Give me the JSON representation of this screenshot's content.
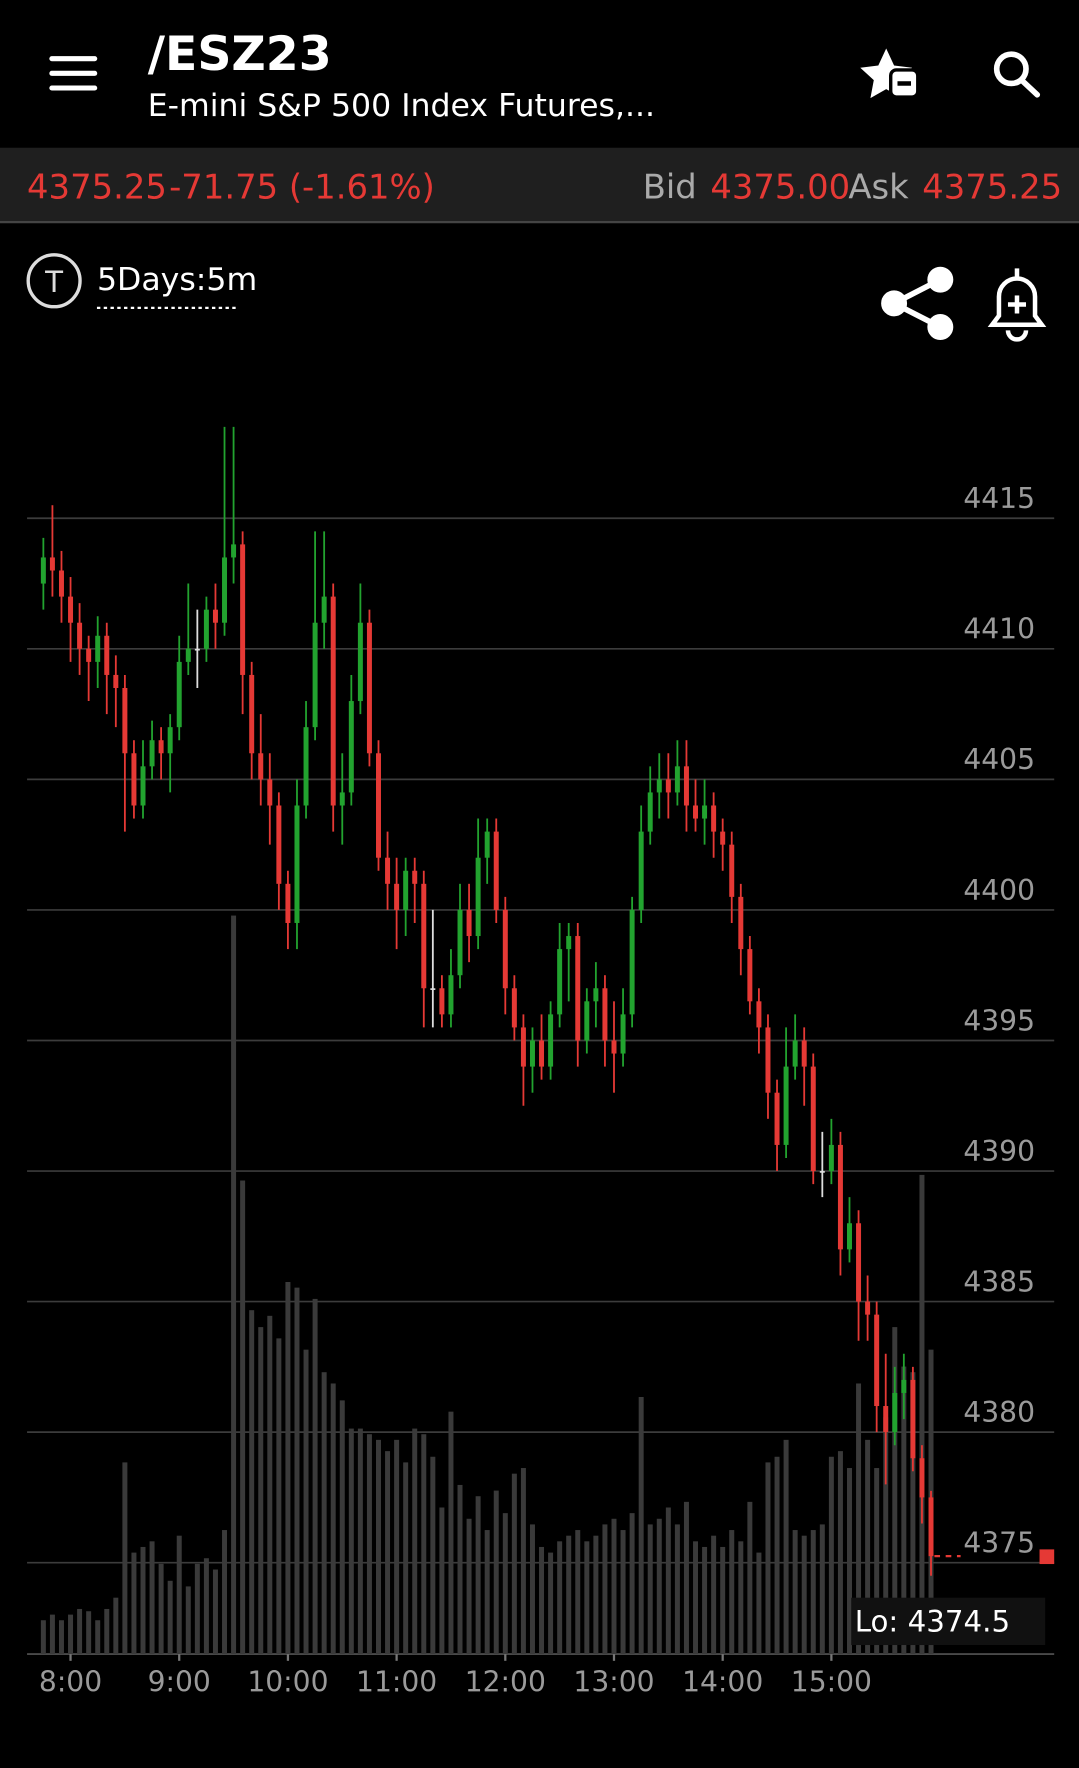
{
  "header": {
    "title": "/ESZ23",
    "subtitle": "E-mini S&P 500 Index Futures,..."
  },
  "quote": {
    "last": "4375.25",
    "change": "-71.75 (-1.61%)",
    "bid_label": "Bid",
    "bid": "4375.00",
    "ask_label": "Ask",
    "ask": "4375.25"
  },
  "toolbar": {
    "period": "5Days:5m",
    "icon_letter": "T"
  },
  "chart_data": {
    "type": "candlestick",
    "low_label": "Lo: 4374.5",
    "colors": {
      "up": "#22a32f",
      "down": "#e53935",
      "unchanged": "#dddddd",
      "volume": "#3a3a3a"
    },
    "x": [
      465,
      470,
      475,
      480,
      485,
      490,
      495,
      500,
      505,
      510,
      515,
      520,
      525,
      530,
      535,
      540,
      545,
      550,
      555,
      560,
      565,
      570,
      575,
      580,
      585,
      590,
      595,
      600,
      605,
      610,
      615,
      620,
      625,
      630,
      635,
      640,
      645,
      650,
      655,
      660,
      665,
      670,
      675,
      680,
      685,
      690,
      695,
      700,
      705,
      710,
      715,
      720,
      725,
      730,
      735,
      740,
      745,
      750,
      755,
      760,
      765,
      770,
      775,
      780,
      785,
      790,
      795,
      800,
      805,
      810,
      815,
      820,
      825,
      830,
      835,
      840,
      845,
      850,
      855,
      860,
      865,
      870,
      875,
      880,
      885,
      890,
      895,
      900,
      905,
      910,
      915,
      920,
      925,
      930,
      935,
      940,
      945,
      950,
      955
    ],
    "open": [
      4412.5,
      4413.5,
      4413,
      4412,
      4411,
      4410,
      4409.5,
      4410.5,
      4409,
      4408.5,
      4406,
      4404,
      4405.5,
      4406.5,
      4406,
      4407,
      4409.5,
      4410,
      4410,
      4411.5,
      4411,
      4413.5,
      4414,
      4409,
      4406,
      4405,
      4404,
      4401,
      4399.5,
      4404,
      4407,
      4411,
      4412,
      4404,
      4404.5,
      4408,
      4411,
      4406,
      4402,
      4401,
      4400,
      4401.5,
      4401,
      4397,
      4397,
      4396,
      4397.5,
      4400,
      4399,
      4402,
      4403,
      4400,
      4397,
      4395.5,
      4394,
      4395,
      4394,
      4396,
      4398.5,
      4399,
      4395,
      4396.5,
      4397,
      4395,
      4394.5,
      4396,
      4400,
      4403,
      4404.5,
      4405,
      4404.5,
      4405.5,
      4404,
      4403.5,
      4404,
      4403,
      4402.5,
      4400.5,
      4398.5,
      4396.5,
      4395.5,
      4393,
      4391,
      4394,
      4395,
      4394,
      4390,
      4390,
      4391,
      4387,
      4388,
      4385,
      4384.5,
      4381,
      4380,
      4381.5,
      4382,
      4379,
      4377.5
    ],
    "high": [
      4414.25,
      4415.5,
      4413.75,
      4412.75,
      4411.75,
      4410.5,
      4411.25,
      4411,
      4409.75,
      4409,
      4406.5,
      4406.5,
      4407.25,
      4407,
      4407.5,
      4410.5,
      4412.5,
      4411.5,
      4412,
      4412.5,
      4418.5,
      4418.5,
      4414.5,
      4409.5,
      4407.5,
      4406,
      4404.5,
      4401.5,
      4405,
      4408,
      4414.5,
      4414.5,
      4412.5,
      4406,
      4409,
      4412.5,
      4411.5,
      4406.5,
      4403,
      4402,
      4402,
      4402,
      4401.5,
      4400,
      4397.5,
      4398.5,
      4401,
      4401,
      4403.5,
      4403.5,
      4403.5,
      4400.5,
      4397.5,
      4396,
      4395.5,
      4396,
      4396.5,
      4399.5,
      4399.5,
      4399.5,
      4397,
      4398,
      4397.5,
      4396.5,
      4397,
      4400.5,
      4404,
      4405.5,
      4406,
      4406,
      4406.5,
      4406.5,
      4405,
      4405,
      4404.5,
      4403.5,
      4403,
      4401,
      4399,
      4397,
      4396,
      4393.5,
      4395.5,
      4396,
      4395.5,
      4394.5,
      4391.5,
      4392,
      4391.5,
      4389,
      4388.5,
      4386,
      4385,
      4383,
      4382.5,
      4383,
      4382.5,
      4379.5,
      4377.75
    ],
    "low": [
      4411.5,
      4412,
      4411,
      4409.5,
      4409,
      4408,
      4408.5,
      4407.5,
      4407,
      4403,
      4403.5,
      4403.5,
      4405,
      4405,
      4404.5,
      4406.5,
      4409,
      4408.5,
      4409.5,
      4410,
      4410.5,
      4412.5,
      4407.5,
      4405,
      4404,
      4402.5,
      4400,
      4398.5,
      4398.5,
      4403.5,
      4406.5,
      4410,
      4403,
      4402.5,
      4404,
      4407.5,
      4405.5,
      4401.5,
      4400,
      4398.5,
      4399,
      4399.5,
      4395.5,
      4395.5,
      4395.5,
      4395.5,
      4397,
      4398,
      4398.5,
      4401,
      4399.5,
      4396,
      4395,
      4392.5,
      4393,
      4393.5,
      4393.5,
      4395.5,
      4396.5,
      4394,
      4394.5,
      4395.5,
      4394,
      4393,
      4394,
      4395.5,
      4399.5,
      4402.5,
      4403.5,
      4403.5,
      4404,
      4403,
      4403,
      4402.5,
      4402,
      4401.5,
      4399.5,
      4397.5,
      4396,
      4394.5,
      4392,
      4390,
      4390.5,
      4393.5,
      4392.5,
      4389.5,
      4389,
      4389.5,
      4386,
      4386.5,
      4383.5,
      4383.5,
      4380,
      4378,
      4379.5,
      4380.5,
      4378.5,
      4376.5,
      4374.5
    ],
    "close": [
      4413.5,
      4413,
      4412,
      4411,
      4410,
      4409.5,
      4410.5,
      4409,
      4408.5,
      4406,
      4404,
      4405.5,
      4406.5,
      4406,
      4407,
      4409.5,
      4410,
      4410,
      4411.5,
      4411,
      4413.5,
      4414,
      4409,
      4406,
      4405,
      4404,
      4401,
      4399.5,
      4404,
      4407,
      4411,
      4412,
      4404,
      4404.5,
      4408,
      4411,
      4406,
      4402,
      4401,
      4400,
      4401.5,
      4401,
      4397,
      4397,
      4396,
      4397.5,
      4400,
      4399,
      4402,
      4403,
      4400,
      4397,
      4395.5,
      4394,
      4395,
      4394,
      4396,
      4398.5,
      4399,
      4395,
      4396.5,
      4397,
      4395,
      4394.5,
      4396,
      4400,
      4403,
      4404.5,
      4405,
      4404.5,
      4405.5,
      4404,
      4403.5,
      4404,
      4403,
      4402.5,
      4400.5,
      4398.5,
      4396.5,
      4395.5,
      4393,
      4391,
      4394,
      4395,
      4394,
      4390,
      4390,
      4391,
      4387,
      4388,
      4385,
      4384.5,
      4381,
      4380,
      4381.5,
      4382,
      4379,
      4377.5,
      4375.25
    ],
    "volume": [
      30,
      35,
      30,
      35,
      40,
      38,
      30,
      40,
      50,
      170,
      90,
      95,
      100,
      80,
      65,
      105,
      60,
      80,
      85,
      75,
      110,
      655,
      420,
      305,
      290,
      300,
      280,
      330,
      325,
      270,
      315,
      250,
      240,
      225,
      200,
      200,
      195,
      190,
      180,
      190,
      170,
      200,
      195,
      175,
      130,
      215,
      150,
      120,
      140,
      110,
      145,
      125,
      160,
      165,
      115,
      95,
      90,
      100,
      105,
      110,
      100,
      105,
      115,
      120,
      110,
      125,
      228,
      115,
      120,
      130,
      115,
      135,
      100,
      95,
      105,
      95,
      110,
      100,
      135,
      90,
      170,
      175,
      190,
      110,
      105,
      110,
      115,
      175,
      180,
      165,
      240,
      190,
      165,
      210,
      290,
      255,
      250,
      425,
      270
    ],
    "xlim": [
      456,
      1023
    ],
    "xticks": [
      {
        "value": 480,
        "label": "8:00"
      },
      {
        "value": 540,
        "label": "9:00"
      },
      {
        "value": 600,
        "label": "10:00"
      },
      {
        "value": 660,
        "label": "11:00"
      },
      {
        "value": 720,
        "label": "12:00"
      },
      {
        "value": 780,
        "label": "13:00"
      },
      {
        "value": 840,
        "label": "14:00"
      },
      {
        "value": 900,
        "label": "15:00"
      }
    ],
    "ylim": [
      4371.5,
      4419
    ],
    "yticks": [
      4375,
      4380,
      4385,
      4390,
      4395,
      4400,
      4405,
      4410,
      4415
    ],
    "vlim": [
      0,
      1100
    ],
    "grid": true
  }
}
